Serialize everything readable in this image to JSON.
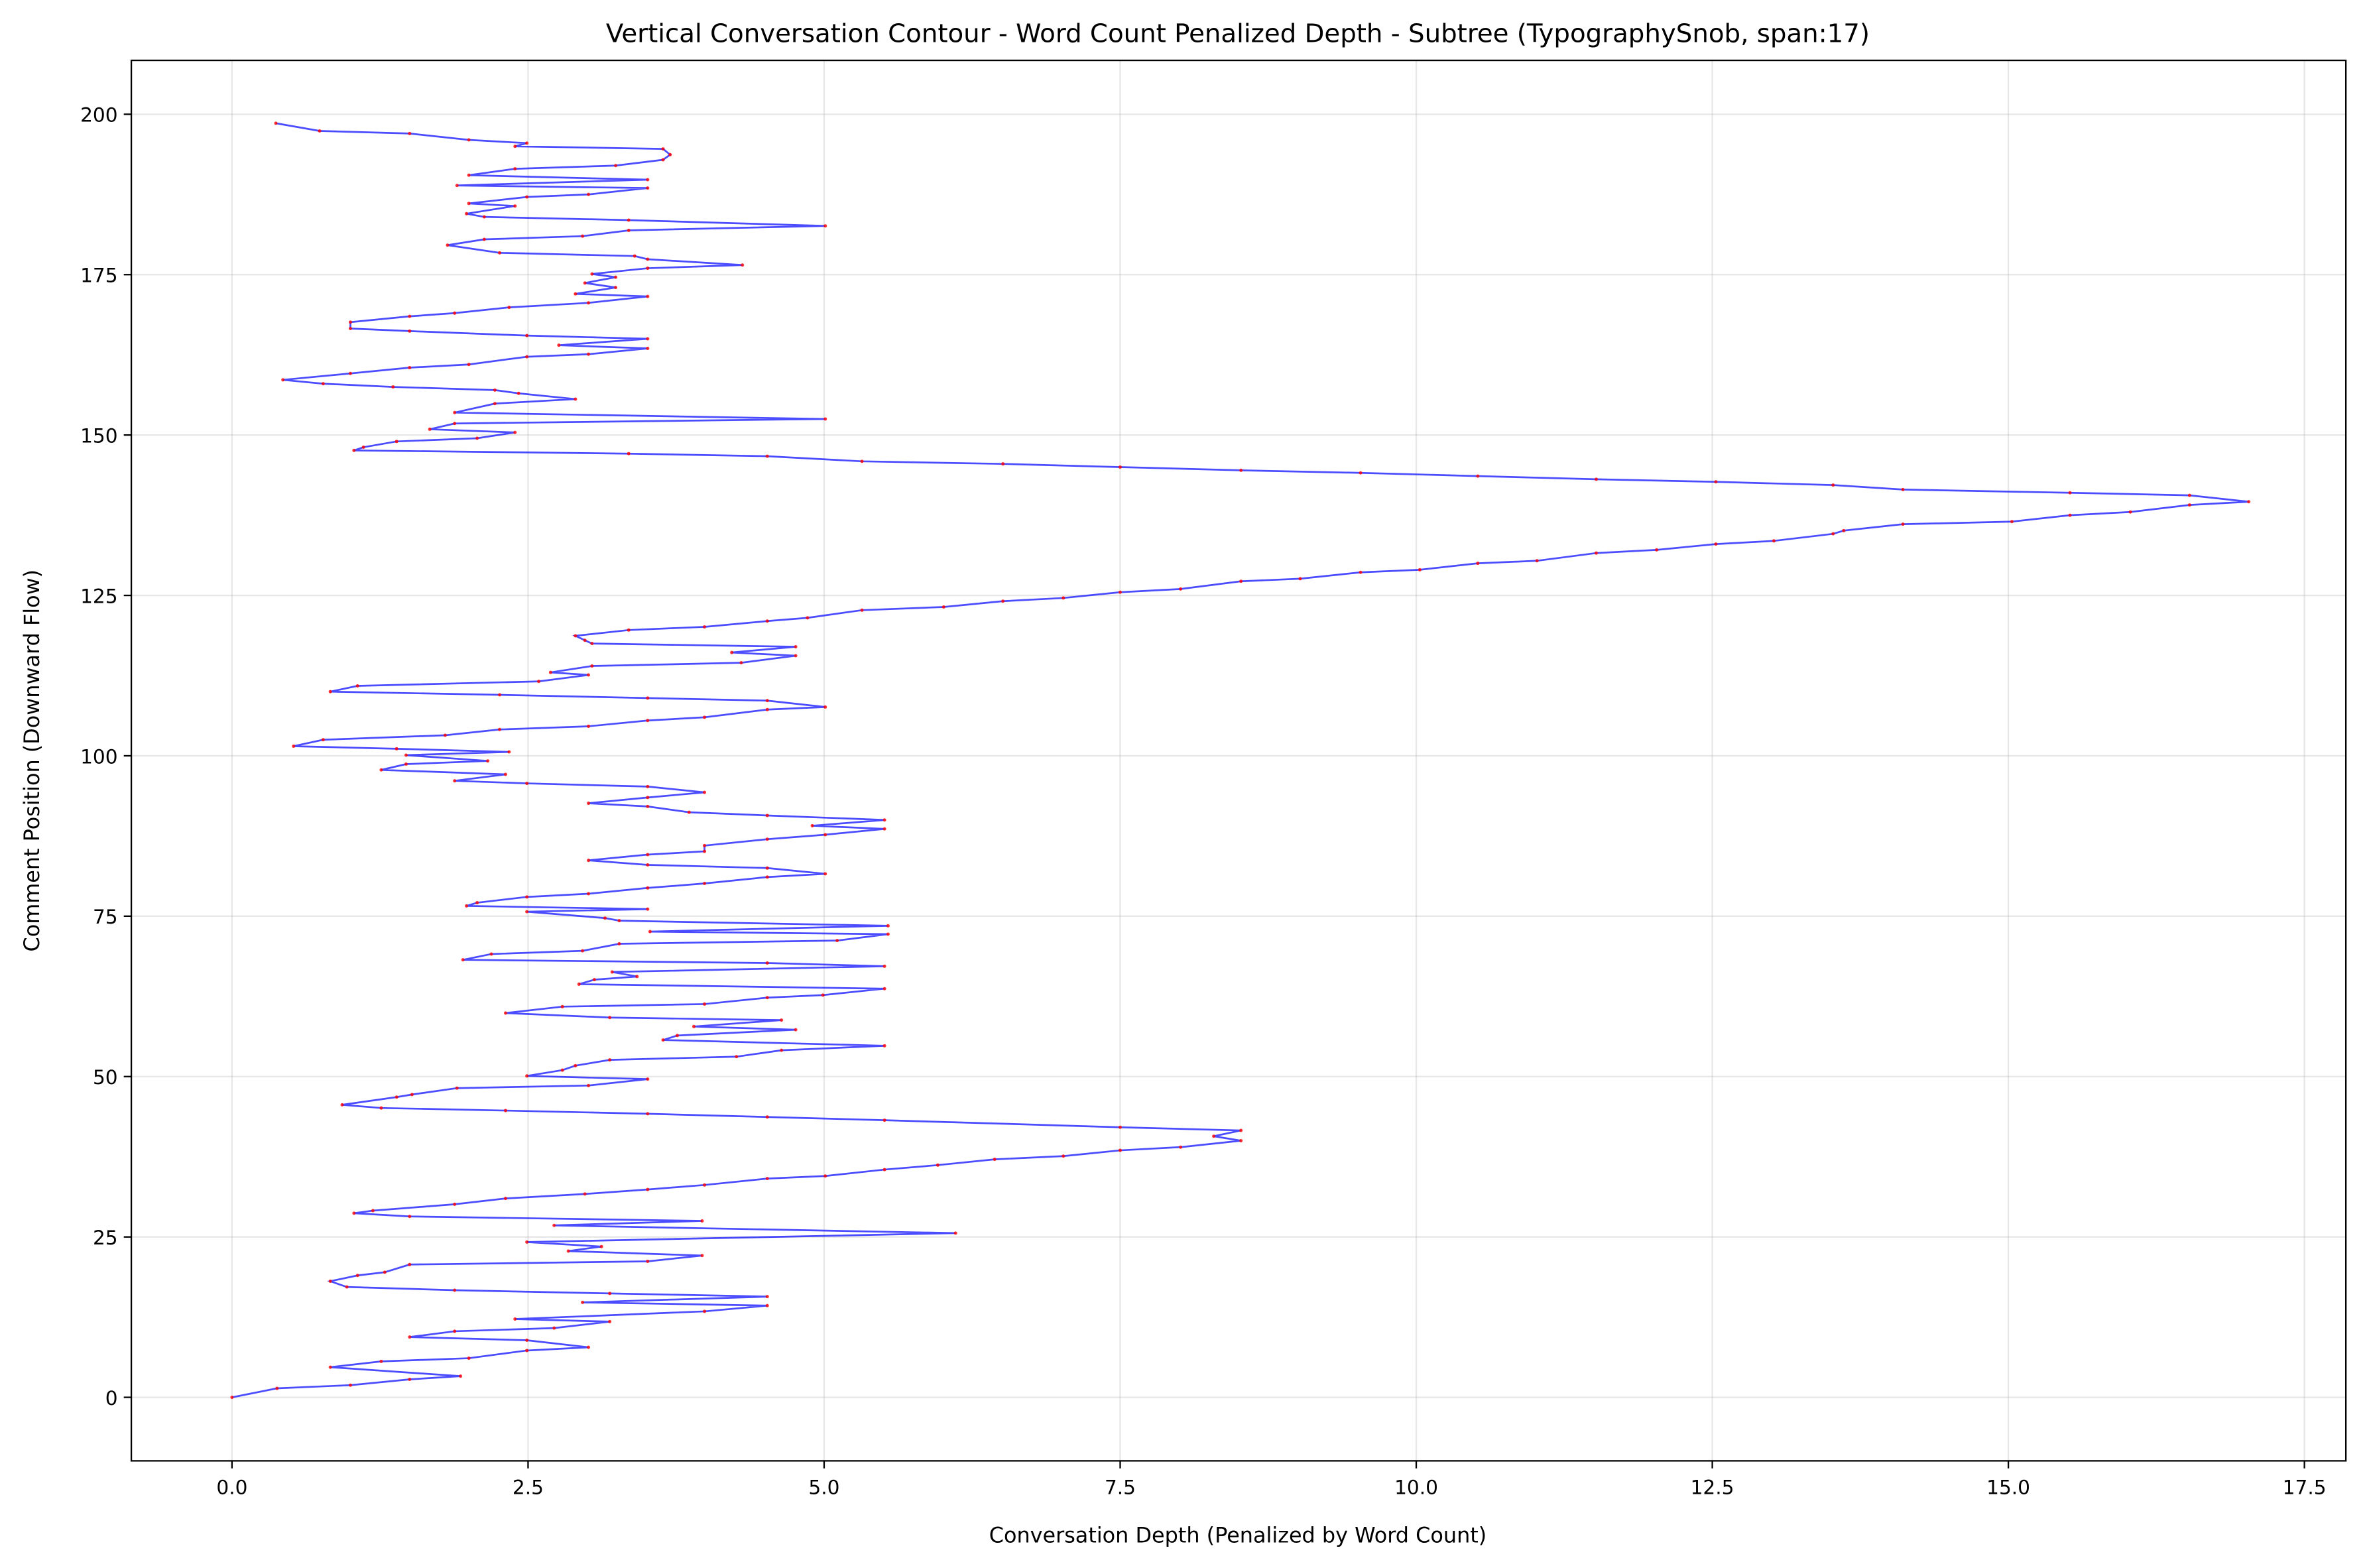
{
  "chart_data": {
    "type": "line",
    "title": "Vertical Conversation Contour - Word Count Penalized Depth - Subtree (TypographySnob, span:17)",
    "xlabel": "Conversation Depth (Penalized by Word Count)",
    "ylabel": "Comment Position (Downward Flow)",
    "xlim": [
      -0.85,
      17.85
    ],
    "ylim": [
      -9.9,
      208.4
    ],
    "xticks": [
      {
        "value": 0,
        "label": "0.0"
      },
      2.5,
      {
        "value": 5,
        "label": "5.0"
      },
      7.5,
      {
        "value": 10,
        "label": "10.0"
      },
      12.5,
      {
        "value": 15,
        "label": "15.0"
      },
      17.5
    ],
    "yticks": [
      0,
      25,
      50,
      75,
      100,
      125,
      150,
      175,
      200
    ],
    "grid": true,
    "series": [
      {
        "color": "#0000ff",
        "marker_color": "#ff0000",
        "x": [
          0,
          0.38,
          1.0,
          1.5,
          1.93,
          0.83,
          1.26,
          2.0,
          2.49,
          3.01,
          2.49,
          1.5,
          1.88,
          2.72,
          3.19,
          2.39,
          3.99,
          4.52,
          2.96,
          4.52,
          3.19,
          1.88,
          0.97,
          0.83,
          1.06,
          1.29,
          1.5,
          3.51,
          3.97,
          2.84,
          3.12,
          2.49,
          6.11,
          2.72,
          3.97,
          1.5,
          1.03,
          1.19,
          1.88,
          2.31,
          2.98,
          3.51,
          3.99,
          4.52,
          5.01,
          5.51,
          5.96,
          6.44,
          7.02,
          7.5,
          8.01,
          8.52,
          8.29,
          8.52,
          7.5,
          5.51,
          4.52,
          3.51,
          2.31,
          1.26,
          0.93,
          1.39,
          1.52,
          1.9,
          3.01,
          3.51,
          2.49,
          2.79,
          2.9,
          3.19,
          4.26,
          4.64,
          5.51,
          3.64,
          3.76,
          4.76,
          3.9,
          4.64,
          3.19,
          2.31,
          2.79,
          3.99,
          4.52,
          4.99,
          5.51,
          2.93,
          3.06,
          3.42,
          3.21,
          5.51,
          4.52,
          1.95,
          2.19,
          2.96,
          3.27,
          5.11,
          5.54,
          3.53,
          5.54,
          3.27,
          3.15,
          2.49,
          3.51,
          1.98,
          2.07,
          2.49,
          3.01,
          3.51,
          3.99,
          4.52,
          5.01,
          4.52,
          3.51,
          3.01,
          3.51,
          3.99,
          3.99,
          4.52,
          5.01,
          5.51,
          4.9,
          5.51,
          4.52,
          3.86,
          3.51,
          3.01,
          3.51,
          3.99,
          3.51,
          2.49,
          1.88,
          2.31,
          1.26,
          1.47,
          2.16,
          1.47,
          2.34,
          1.39,
          0.52,
          0.77,
          1.8,
          2.26,
          3.01,
          3.51,
          3.99,
          4.52,
          5.01,
          4.52,
          3.51,
          2.26,
          0.83,
          1.06,
          2.59,
          3.01,
          2.69,
          3.04,
          4.3,
          4.76,
          4.22,
          4.76,
          3.04,
          2.98,
          2.9,
          3.35,
          3.99,
          4.52,
          4.86,
          5.32,
          6.01,
          6.51,
          7.02,
          7.5,
          8.01,
          8.52,
          9.02,
          9.53,
          10.03,
          10.52,
          11.02,
          11.52,
          12.03,
          12.53,
          13.02,
          13.52,
          13.61,
          14.11,
          15.03,
          15.52,
          16.03,
          16.53,
          17.03,
          16.53,
          15.52,
          14.11,
          13.52,
          12.53,
          11.52,
          10.52,
          9.53,
          8.52,
          7.5,
          6.51,
          5.32,
          4.52,
          3.35,
          1.03,
          1.11,
          1.39,
          2.07,
          2.39,
          1.67,
          1.88,
          5.01,
          1.88,
          2.22,
          2.9,
          2.42,
          2.22,
          1.36,
          0.77,
          0.43,
          1.0,
          1.5,
          2.0,
          2.49,
          3.01,
          3.51,
          2.76,
          3.51,
          2.49,
          1.5,
          1.0,
          1.0,
          1.5,
          1.88,
          2.34,
          3.01,
          3.51,
          2.9,
          3.24,
          2.98,
          3.24,
          3.04,
          3.51,
          4.31,
          3.51,
          3.4,
          2.26,
          1.82,
          2.13,
          2.96,
          3.35,
          5.01,
          3.35,
          2.13,
          1.98,
          2.39,
          2.0,
          2.49,
          3.01,
          3.51,
          1.9,
          3.51,
          2.0,
          2.39,
          3.24,
          3.64,
          3.7,
          3.64,
          2.39,
          2.49,
          2.0,
          1.5,
          0.74,
          0.37
        ],
        "y": [
          0,
          1.4,
          1.9,
          2.8,
          3.3,
          4.7,
          5.6,
          6.1,
          7.3,
          7.8,
          8.9,
          9.4,
          10.3,
          10.8,
          11.8,
          12.2,
          13.4,
          14.3,
          14.8,
          15.7,
          16.2,
          16.7,
          17.2,
          18.1,
          19,
          19.5,
          20.7,
          21.2,
          22.1,
          22.8,
          23.5,
          24.2,
          25.6,
          26.8,
          27.5,
          28.2,
          28.7,
          29.1,
          30.1,
          31,
          31.7,
          32.4,
          33.1,
          34.1,
          34.5,
          35.5,
          36.2,
          37.1,
          37.6,
          38.5,
          39,
          40,
          40.7,
          41.6,
          42.1,
          43.2,
          43.7,
          44.2,
          44.7,
          45.1,
          45.6,
          46.8,
          47.2,
          48.2,
          48.6,
          49.6,
          50.1,
          51,
          51.7,
          52.6,
          53.1,
          54.1,
          54.8,
          55.7,
          56.4,
          57.3,
          57.8,
          58.8,
          59.2,
          59.9,
          60.9,
          61.3,
          62.3,
          62.7,
          63.7,
          64.4,
          65.1,
          65.6,
          66.3,
          67.2,
          67.7,
          68.2,
          69.1,
          69.6,
          70.7,
          71.2,
          72.2,
          72.6,
          73.5,
          74.3,
          74.7,
          75.7,
          76.1,
          76.6,
          77.1,
          78,
          78.5,
          79.4,
          80.1,
          81.1,
          81.6,
          82.5,
          83,
          83.7,
          84.6,
          85.1,
          86,
          87,
          87.7,
          88.6,
          89.1,
          90,
          90.7,
          91.2,
          92.1,
          92.6,
          93.5,
          94.3,
          95.2,
          95.7,
          96.1,
          97.1,
          97.8,
          98.7,
          99.2,
          100.1,
          100.6,
          101.1,
          101.5,
          102.5,
          103.2,
          104.1,
          104.6,
          105.5,
          106,
          107.2,
          107.6,
          108.6,
          109,
          109.5,
          110,
          110.9,
          111.6,
          112.6,
          113,
          114,
          114.5,
          115.6,
          116.1,
          117,
          117.5,
          118,
          118.7,
          119.6,
          120.1,
          121,
          121.5,
          122.7,
          123.2,
          124.1,
          124.6,
          125.5,
          126,
          127.2,
          127.6,
          128.6,
          129,
          130,
          130.4,
          131.6,
          132.1,
          133,
          133.5,
          134.6,
          135.1,
          136.1,
          136.5,
          137.5,
          138,
          139.1,
          139.6,
          140.6,
          141,
          141.5,
          142.2,
          142.7,
          143.1,
          143.6,
          144.1,
          144.5,
          145,
          145.5,
          145.9,
          146.7,
          147.1,
          147.6,
          148.1,
          149,
          149.5,
          150.4,
          150.9,
          151.8,
          152.5,
          153.5,
          154.9,
          155.6,
          156.5,
          157,
          157.5,
          158,
          158.6,
          159.6,
          160.5,
          161,
          162.2,
          162.6,
          163.5,
          164,
          165,
          165.5,
          166.2,
          166.6,
          167.6,
          168.5,
          169,
          169.9,
          170.6,
          171.6,
          172,
          173,
          173.7,
          174.6,
          175.1,
          176,
          176.5,
          177.4,
          177.9,
          178.4,
          179.6,
          180.5,
          181,
          181.9,
          182.6,
          183.5,
          184,
          184.5,
          185.7,
          186.1,
          187.1,
          187.5,
          188.5,
          188.9,
          189.8,
          190.5,
          191.5,
          192,
          192.9,
          193.7,
          194.6,
          195,
          195.5,
          196,
          197,
          197.4,
          198.6
        ]
      }
    ]
  }
}
